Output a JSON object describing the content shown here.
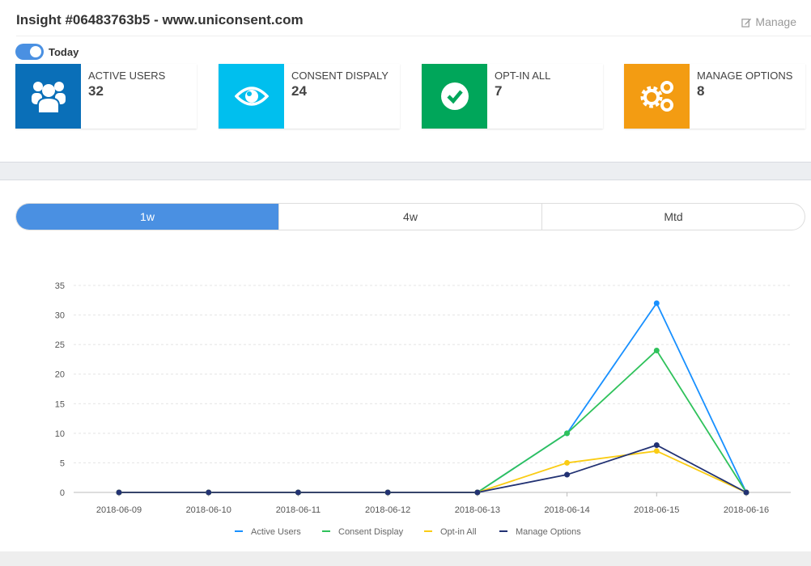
{
  "header": {
    "title": "Insight #06483763b5 - www.uniconsent.com",
    "manage_label": "Manage"
  },
  "toggle": {
    "label": "Today",
    "on": true
  },
  "cards": [
    {
      "label": "ACTIVE USERS",
      "value": "32",
      "color": "#0a6fb8",
      "icon": "users-icon"
    },
    {
      "label": "CONSENT DISPALY",
      "value": "24",
      "color": "#00bfee",
      "icon": "eye-icon"
    },
    {
      "label": "OPT-IN ALL",
      "value": "7",
      "color": "#00a65a",
      "icon": "check-circle-icon"
    },
    {
      "label": "MANAGE OPTIONS",
      "value": "8",
      "color": "#f39c12",
      "icon": "gears-icon"
    }
  ],
  "tabs": [
    {
      "label": "1w",
      "active": true
    },
    {
      "label": "4w",
      "active": false
    },
    {
      "label": "Mtd",
      "active": false
    }
  ],
  "chart_data": {
    "type": "line",
    "categories": [
      "2018-06-09",
      "2018-06-10",
      "2018-06-11",
      "2018-06-12",
      "2018-06-13",
      "2018-06-14",
      "2018-06-15",
      "2018-06-16"
    ],
    "ylim": [
      0,
      35
    ],
    "yticks": [
      0,
      5,
      10,
      15,
      20,
      25,
      30,
      35
    ],
    "grid": true,
    "legend": "bottom",
    "series": [
      {
        "name": "Active Users",
        "color": "#1890ff",
        "values": [
          0,
          0,
          0,
          0,
          0,
          10,
          32,
          0
        ]
      },
      {
        "name": "Consent Display",
        "color": "#2fc25b",
        "values": [
          0,
          0,
          0,
          0,
          0,
          10,
          24,
          0
        ]
      },
      {
        "name": "Opt-in All",
        "color": "#facc14",
        "values": [
          0,
          0,
          0,
          0,
          0,
          5,
          7,
          0
        ]
      },
      {
        "name": "Manage Options",
        "color": "#223273",
        "values": [
          0,
          0,
          0,
          0,
          0,
          3,
          8,
          0
        ]
      }
    ]
  }
}
